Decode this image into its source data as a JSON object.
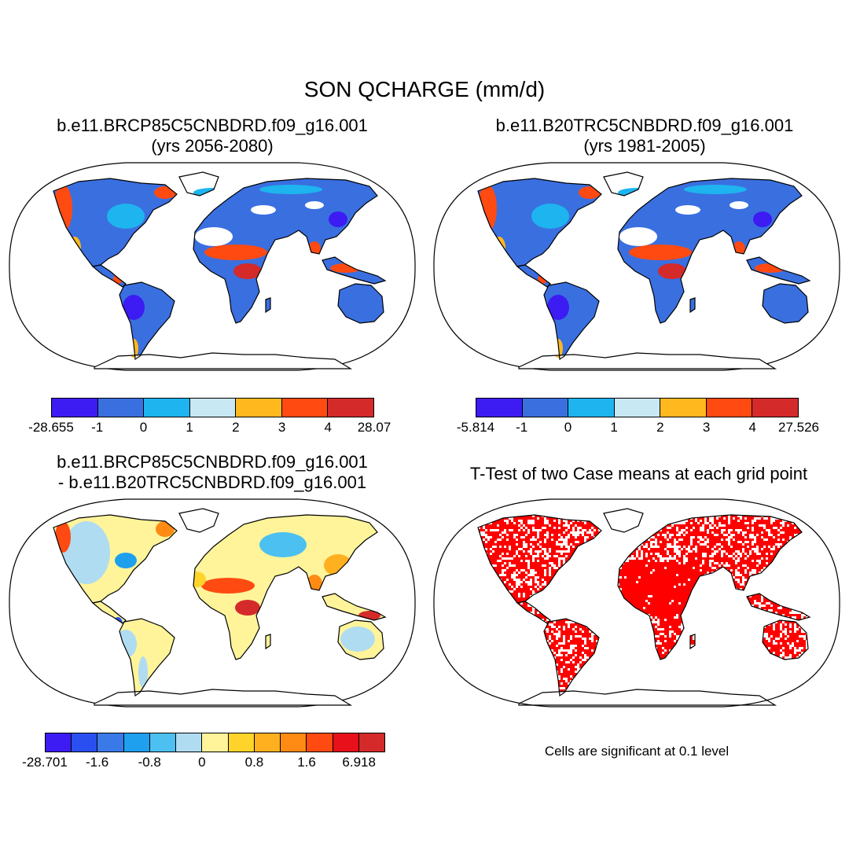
{
  "title": "SON QCHARGE (mm/d)",
  "panels": [
    {
      "title_line1": "b.e11.BRCP85C5CNBDRD.f09_g16.001",
      "title_line2": "(yrs 2056-2080)",
      "colorbar": {
        "labels": [
          "-28.655",
          "-1",
          "0",
          "1",
          "2",
          "3",
          "4",
          "28.07"
        ],
        "colors": [
          "#3c1cf2",
          "#3a6fe0",
          "#1eb4ef",
          "#c8e8f4",
          "#ffb81e",
          "#ff4a12",
          "#d42a2a"
        ]
      }
    },
    {
      "title_line1": "b.e11.B20TRC5CNBDRD.f09_g16.001",
      "title_line2": "(yrs 1981-2005)",
      "colorbar": {
        "labels": [
          "-5.814",
          "-1",
          "0",
          "1",
          "2",
          "3",
          "4",
          "27.526"
        ],
        "colors": [
          "#3c1cf2",
          "#3a6fe0",
          "#1eb4ef",
          "#c8e8f4",
          "#ffb81e",
          "#ff4a12",
          "#d42a2a"
        ]
      }
    },
    {
      "title_line1": "b.e11.BRCP85C5CNBDRD.f09_g16.001",
      "title_line2": "- b.e11.B20TRC5CNBDRD.f09_g16.001",
      "colorbar": {
        "labels": [
          "-28.701",
          "-1.6",
          "-0.8",
          "0",
          "0.8",
          "1.6",
          "6.918"
        ],
        "colors": [
          "#3c1cf2",
          "#2a4ff0",
          "#3a7ae8",
          "#1ea0ee",
          "#4cc0f0",
          "#b0dcf2",
          "#fff49a",
          "#ffd42a",
          "#ffb01e",
          "#ff8a14",
          "#ff4a12",
          "#e8101a",
          "#d42a2a"
        ]
      }
    },
    {
      "title_line1": "T-Test of two Case means at each grid point",
      "note": "Cells are significant at 0.1 level",
      "sig_color": "#ff0000"
    }
  ]
}
